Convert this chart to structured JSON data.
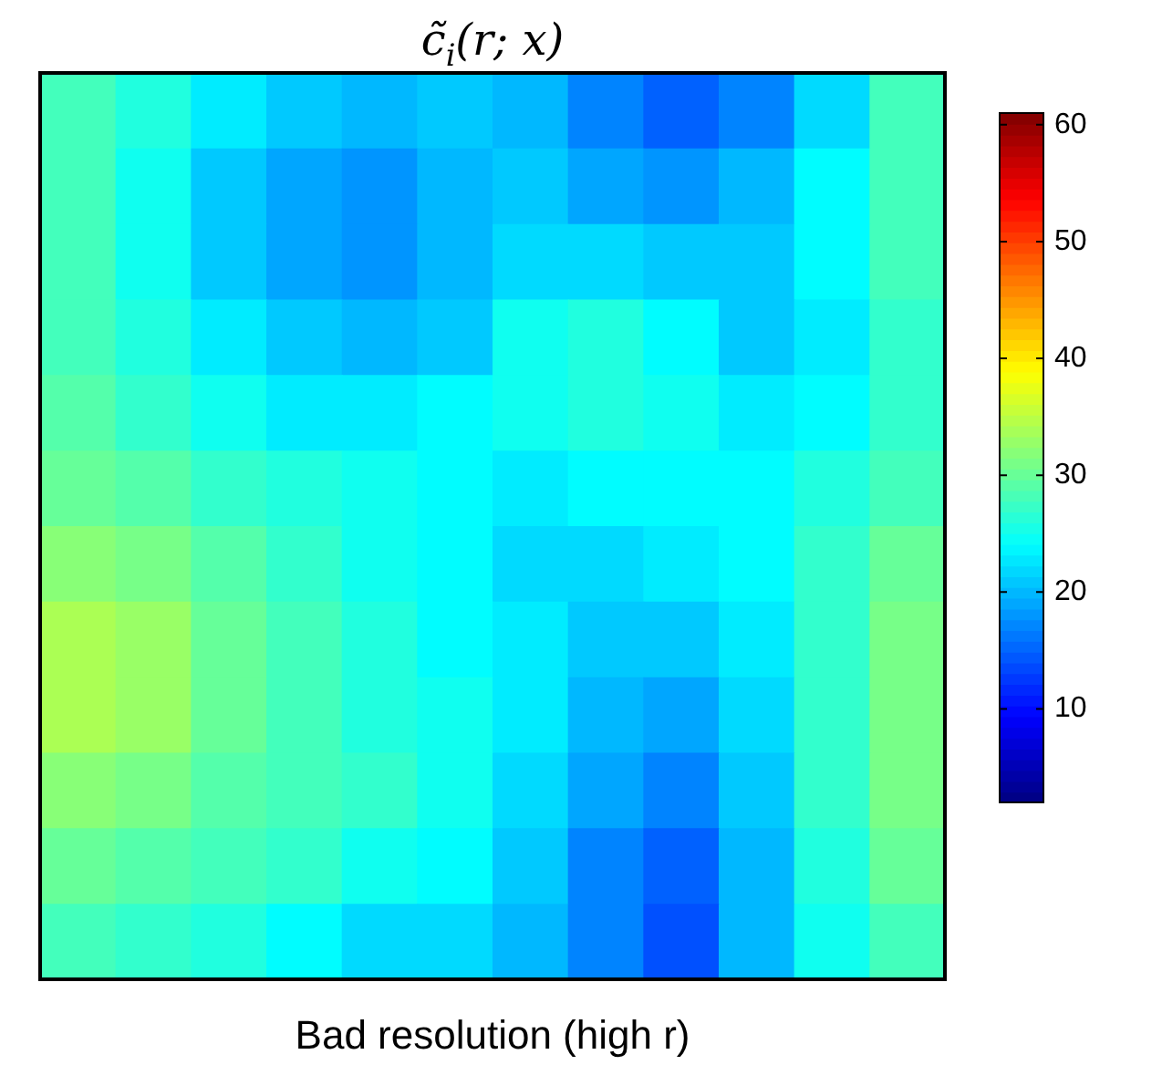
{
  "chart_data": {
    "type": "heatmap",
    "title": "c̃$_{i}$(r; x)",
    "xlabel": "Bad resolution (high r)",
    "categories": [
      null,
      null,
      null,
      null,
      null,
      null,
      null,
      null,
      null,
      null,
      null,
      null
    ],
    "y_categories": [
      null,
      null,
      null,
      null,
      null,
      null,
      null,
      null,
      null,
      null,
      null,
      null
    ],
    "cells": [
      [
        28,
        26,
        23,
        21,
        20,
        21,
        20,
        17,
        15,
        17,
        22,
        28
      ],
      [
        28,
        25,
        21,
        19,
        18,
        20,
        21,
        19,
        18,
        20,
        24,
        28
      ],
      [
        28,
        25,
        21,
        19,
        18,
        20,
        22,
        22,
        21,
        21,
        24,
        28
      ],
      [
        28,
        26,
        23,
        21,
        20,
        21,
        25,
        26,
        24,
        21,
        23,
        27
      ],
      [
        29,
        27,
        25,
        23,
        23,
        24,
        25,
        26,
        25,
        23,
        24,
        27
      ],
      [
        30,
        29,
        27,
        26,
        25,
        24,
        23,
        24,
        24,
        24,
        26,
        28
      ],
      [
        32,
        31,
        29,
        27,
        25,
        24,
        22,
        22,
        23,
        24,
        27,
        30
      ],
      [
        34,
        33,
        30,
        28,
        26,
        24,
        23,
        21,
        21,
        23,
        27,
        31
      ],
      [
        34,
        33,
        30,
        28,
        26,
        25,
        23,
        20,
        19,
        22,
        27,
        31
      ],
      [
        32,
        31,
        29,
        28,
        27,
        25,
        22,
        19,
        17,
        21,
        27,
        31
      ],
      [
        30,
        29,
        28,
        27,
        25,
        24,
        21,
        17,
        15,
        20,
        26,
        30
      ],
      [
        28,
        27,
        26,
        24,
        22,
        22,
        20,
        17,
        14,
        20,
        25,
        28
      ]
    ],
    "clim": [
      2,
      61
    ],
    "cticks": [
      10,
      20,
      30,
      40,
      50,
      60
    ],
    "tick_labels": false
  }
}
